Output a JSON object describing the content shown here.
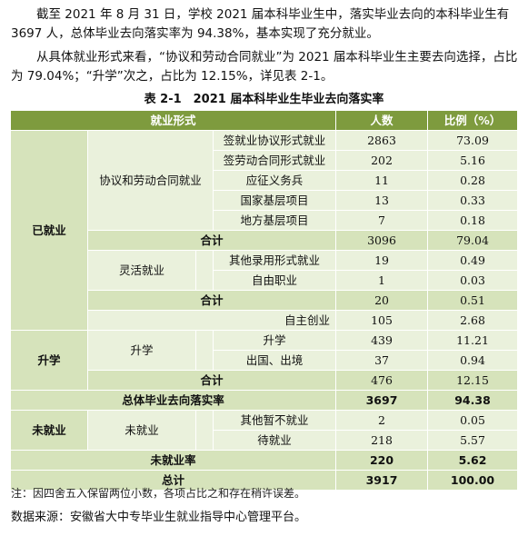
{
  "intro": {
    "p1": "截至 2021 年 8 月 31 日，学校 2021 届本科毕业生中，落实毕业去向的本科毕业生有 3697 人，总体毕业去向落实率为 94.38%，基本实现了充分就业。",
    "p2": "从具体就业形式来看，“协议和劳动合同就业”为 2021 届本科毕业生主要去向选择，占比为 79.04%；“升学”次之，占比为 12.15%，详见表 2-1。"
  },
  "table": {
    "caption": "表 2-1　2021 届本科毕业生毕业去向落实率",
    "headers": {
      "form": "就业形式",
      "count": "人数",
      "ratio": "比例（%）"
    },
    "employed": {
      "label": "已就业",
      "contract": {
        "label": "协议和劳动合同就业",
        "rows": [
          {
            "name": "签就业协议形式就业",
            "count": "2863",
            "ratio": "73.09"
          },
          {
            "name": "签劳动合同形式就业",
            "count": "202",
            "ratio": "5.16"
          },
          {
            "name": "应征义务兵",
            "count": "11",
            "ratio": "0.28"
          },
          {
            "name": "国家基层项目",
            "count": "13",
            "ratio": "0.33"
          },
          {
            "name": "地方基层项目",
            "count": "7",
            "ratio": "0.18"
          }
        ],
        "subtotal": {
          "label": "合计",
          "count": "3096",
          "ratio": "79.04"
        }
      },
      "flexible": {
        "label": "灵活就业",
        "rows": [
          {
            "name": "其他录用形式就业",
            "count": "19",
            "ratio": "0.49"
          },
          {
            "name": "自由职业",
            "count": "1",
            "ratio": "0.03"
          }
        ],
        "subtotal": {
          "label": "合计",
          "count": "20",
          "ratio": "0.51"
        }
      },
      "self": {
        "label": "自主创业",
        "count": "105",
        "ratio": "2.68"
      }
    },
    "further": {
      "label": "升学",
      "sub": "升学",
      "rows": [
        {
          "name": "升学",
          "count": "439",
          "ratio": "11.21"
        },
        {
          "name": "出国、出境",
          "count": "37",
          "ratio": "0.94"
        }
      ],
      "subtotal": {
        "label": "合计",
        "count": "476",
        "ratio": "12.15"
      }
    },
    "overall": {
      "label": "总体毕业去向落实率",
      "count": "3697",
      "ratio": "94.38"
    },
    "unemployed": {
      "label": "未就业",
      "sub": "未就业",
      "rows": [
        {
          "name": "其他暂不就业",
          "count": "2",
          "ratio": "0.05"
        },
        {
          "name": "待就业",
          "count": "218",
          "ratio": "5.57"
        }
      ],
      "rate": {
        "label": "未就业率",
        "count": "220",
        "ratio": "5.62"
      }
    },
    "total": {
      "label": "总计",
      "count": "3917",
      "ratio": "100.00"
    }
  },
  "note": "注：因四舍五入保留两位小数，各项占比之和存在稍许误差。",
  "source": "数据来源：安徽省大中专毕业生就业指导中心管理平台。"
}
